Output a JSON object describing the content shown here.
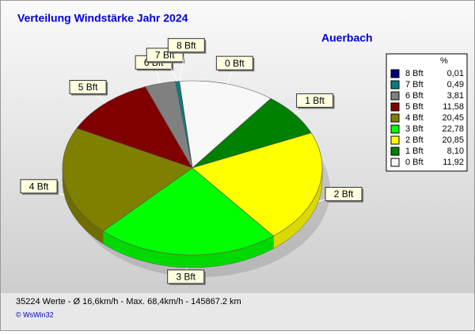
{
  "chart_data": {
    "type": "pie",
    "title": "Verteilung Windstärke  Jahr 2024",
    "subtitle": "Auerbach",
    "legend_title": "%",
    "categories": [
      "8 Bft",
      "7 Bft",
      "6 Bft",
      "5 Bft",
      "4 Bft",
      "3 Bft",
      "2 Bft",
      "1 Bft",
      "0 Bft"
    ],
    "values": [
      0.01,
      0.49,
      3.81,
      11.58,
      20.45,
      22.78,
      20.85,
      8.1,
      11.92
    ],
    "value_labels": [
      "0,01",
      "0,49",
      "3,81",
      "11,58",
      "20,45",
      "22,78",
      "20,85",
      "8,10",
      "11,92"
    ],
    "colors": [
      "#000080",
      "#008080",
      "#808080",
      "#800000",
      "#808000",
      "#00ff00",
      "#ffff00",
      "#008000",
      "#f8f8f8"
    ],
    "legend": "right",
    "annotations": [
      "35224 Werte   -   Ø 16,6km/h   -   Max. 68,4km/h   -   145867.2 km",
      "© WsWin32"
    ]
  }
}
